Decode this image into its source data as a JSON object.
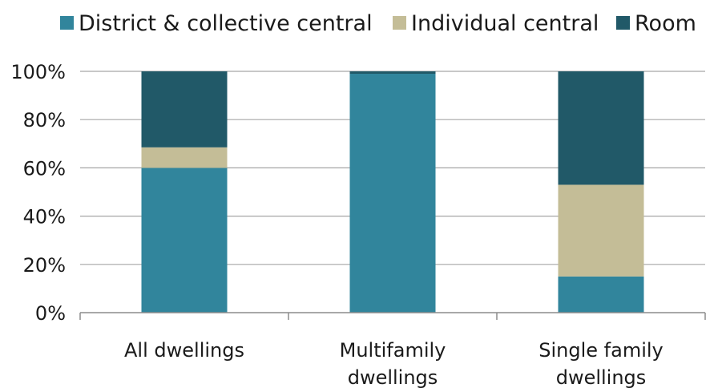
{
  "chart_data": {
    "type": "bar",
    "stacked": true,
    "title": "",
    "xlabel": "",
    "ylabel": "",
    "ylim": [
      0,
      100
    ],
    "y_ticks": [
      "0%",
      "20%",
      "40%",
      "60%",
      "80%",
      "100%"
    ],
    "y_tick_values": [
      0,
      20,
      40,
      60,
      80,
      100
    ],
    "grid": true,
    "legend_position": "top",
    "categories": [
      [
        "All dwellings"
      ],
      [
        "Multifamily",
        "dwellings"
      ],
      [
        "Single family",
        "dwellings"
      ]
    ],
    "series": [
      {
        "name": "District & collective central",
        "color": "#31859c",
        "values": [
          60,
          99,
          15
        ]
      },
      {
        "name": "Individual central",
        "color": "#c4bd97",
        "values": [
          8.5,
          0,
          38
        ]
      },
      {
        "name": "Room",
        "color": "#215968",
        "values": [
          31.5,
          1,
          47
        ]
      }
    ]
  }
}
